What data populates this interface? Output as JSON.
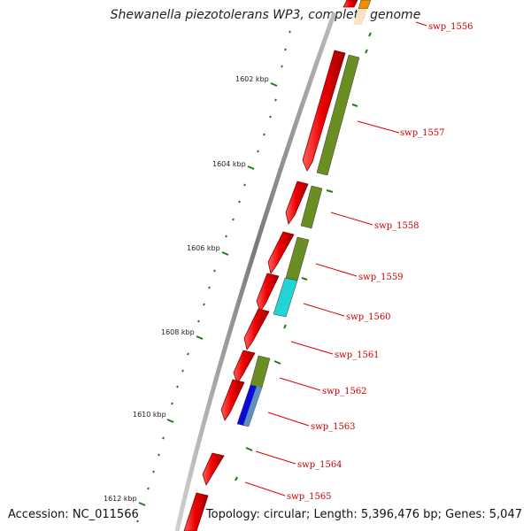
{
  "title": "Shewanella piezotolerans WP3, complete genome",
  "accession": "Accession: NC_011566",
  "topology": "Topology: circular; Length: 5,396,476 bp; Genes: 5,047",
  "colors": {
    "backbone": "#8c8c8c",
    "cds": "#ee0000",
    "ticks": "#1a7f1a",
    "label_text": "#cc0000",
    "leader": "#dd0000"
  },
  "tick_labels": [
    "1602 kbp",
    "1604 kbp",
    "1606 kbp",
    "1608 kbp",
    "1610 kbp",
    "1612 kbp"
  ],
  "genes": [
    {
      "label": "swp_1556",
      "strand": "+",
      "cog": "#f28c00"
    },
    {
      "label": "swp_1557",
      "strand": "+",
      "cog": "#6b8e23"
    },
    {
      "label": "swp_1558",
      "strand": "+",
      "cog": "#6b8e23"
    },
    {
      "label": "swp_1559",
      "strand": "+",
      "cog": "#6b8e23"
    },
    {
      "label": "swp_1560",
      "strand": "+",
      "cog": "#00cccc"
    },
    {
      "label": "swp_1561",
      "strand": "+",
      "cog": ""
    },
    {
      "label": "swp_1562",
      "strand": "+",
      "cog": "#6b8e23"
    },
    {
      "label": "swp_1563",
      "strand": "+",
      "cog": "#0000dd"
    },
    {
      "label": "swp_1564",
      "strand": "+",
      "cog": ""
    },
    {
      "label": "swp_1565",
      "strand": "+",
      "cog": ""
    }
  ]
}
